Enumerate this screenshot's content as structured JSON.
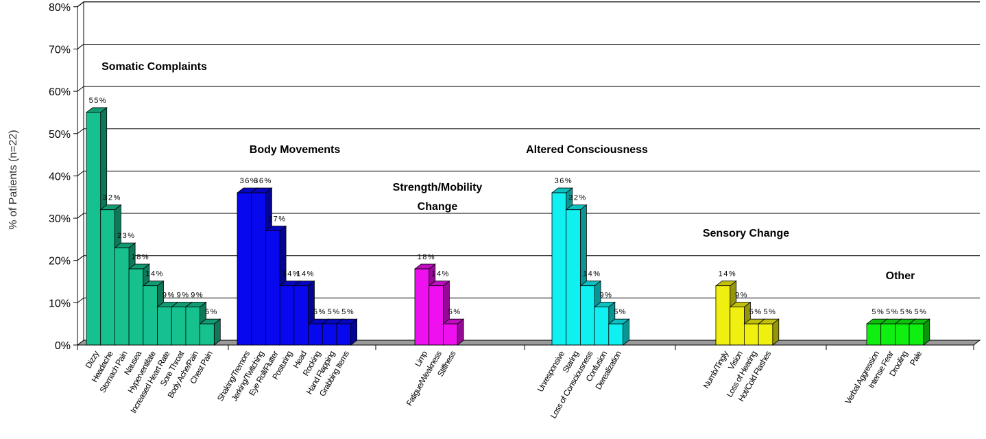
{
  "chart_data": {
    "type": "bar",
    "ylabel": "% of Patients (n=22)",
    "ylim": [
      0,
      80
    ],
    "yticks": [
      "0%",
      "10%",
      "20%",
      "30%",
      "40%",
      "50%",
      "60%",
      "70%",
      "80%"
    ],
    "grid": true,
    "groups": [
      {
        "name": "Somatic Complaints",
        "color": "#16C18F",
        "categories": [
          "Dizzy",
          "Headache",
          "Stomach Pain",
          "Nausea",
          "Hyperventilate",
          "Increased Heart Rate",
          "Sore Throat",
          "Body Ache/Pain",
          "Chest Pain"
        ],
        "values": [
          55,
          32,
          23,
          18,
          14,
          9,
          9,
          9,
          5
        ],
        "labels": [
          "55%",
          "32%",
          "23%",
          "18%",
          "14%",
          "9%",
          "9%",
          "9%",
          "5%"
        ]
      },
      {
        "name": "Body Movements",
        "color": "#0808EE",
        "categories": [
          "Shaking/Tremors",
          "Jerking/Twitching",
          "Eye Roll/Flutter",
          "Posturing",
          "Head",
          "Rocking",
          "Hand Flapping",
          "Grabbing Items"
        ],
        "values": [
          36,
          36,
          27,
          14,
          14,
          5,
          5,
          5
        ],
        "labels": [
          "36%",
          "36%",
          "27%",
          "14%",
          "14%",
          "5%",
          "5%",
          "5%"
        ]
      },
      {
        "name": "Strength/Mobility Change",
        "name_lines": [
          "Strength/Mobility",
          "Change"
        ],
        "color": "#EE10EE",
        "categories": [
          "Limp",
          "Fatigue/Weakness",
          "Stiffness"
        ],
        "values": [
          18,
          14,
          5
        ],
        "labels": [
          "18%",
          "14%",
          "5%"
        ]
      },
      {
        "name": "Altered Consciousness",
        "color": "#10F0F0",
        "categories": [
          "Unresponsive",
          "Staring",
          "Loss of Consciousness",
          "Confusion",
          "Derealization"
        ],
        "values": [
          36,
          32,
          14,
          9,
          5
        ],
        "labels": [
          "36%",
          "32%",
          "14%",
          "9%",
          "5%"
        ]
      },
      {
        "name": "Sensory Change",
        "color": "#F0F010",
        "categories": [
          "Numb/Tingly",
          "Vision",
          "Loss of Hearing",
          "Hot/Cold Flashes"
        ],
        "values": [
          14,
          9,
          5,
          5
        ],
        "labels": [
          "14%",
          "9%",
          "5%",
          "5%"
        ]
      },
      {
        "name": "Other",
        "color": "#10F010",
        "categories": [
          "Verbal Aggression",
          "Intense Fear",
          "Drooling",
          "Pale"
        ],
        "values": [
          5,
          5,
          5,
          5
        ],
        "labels": [
          "5%",
          "5%",
          "5%",
          "5%"
        ]
      }
    ]
  }
}
